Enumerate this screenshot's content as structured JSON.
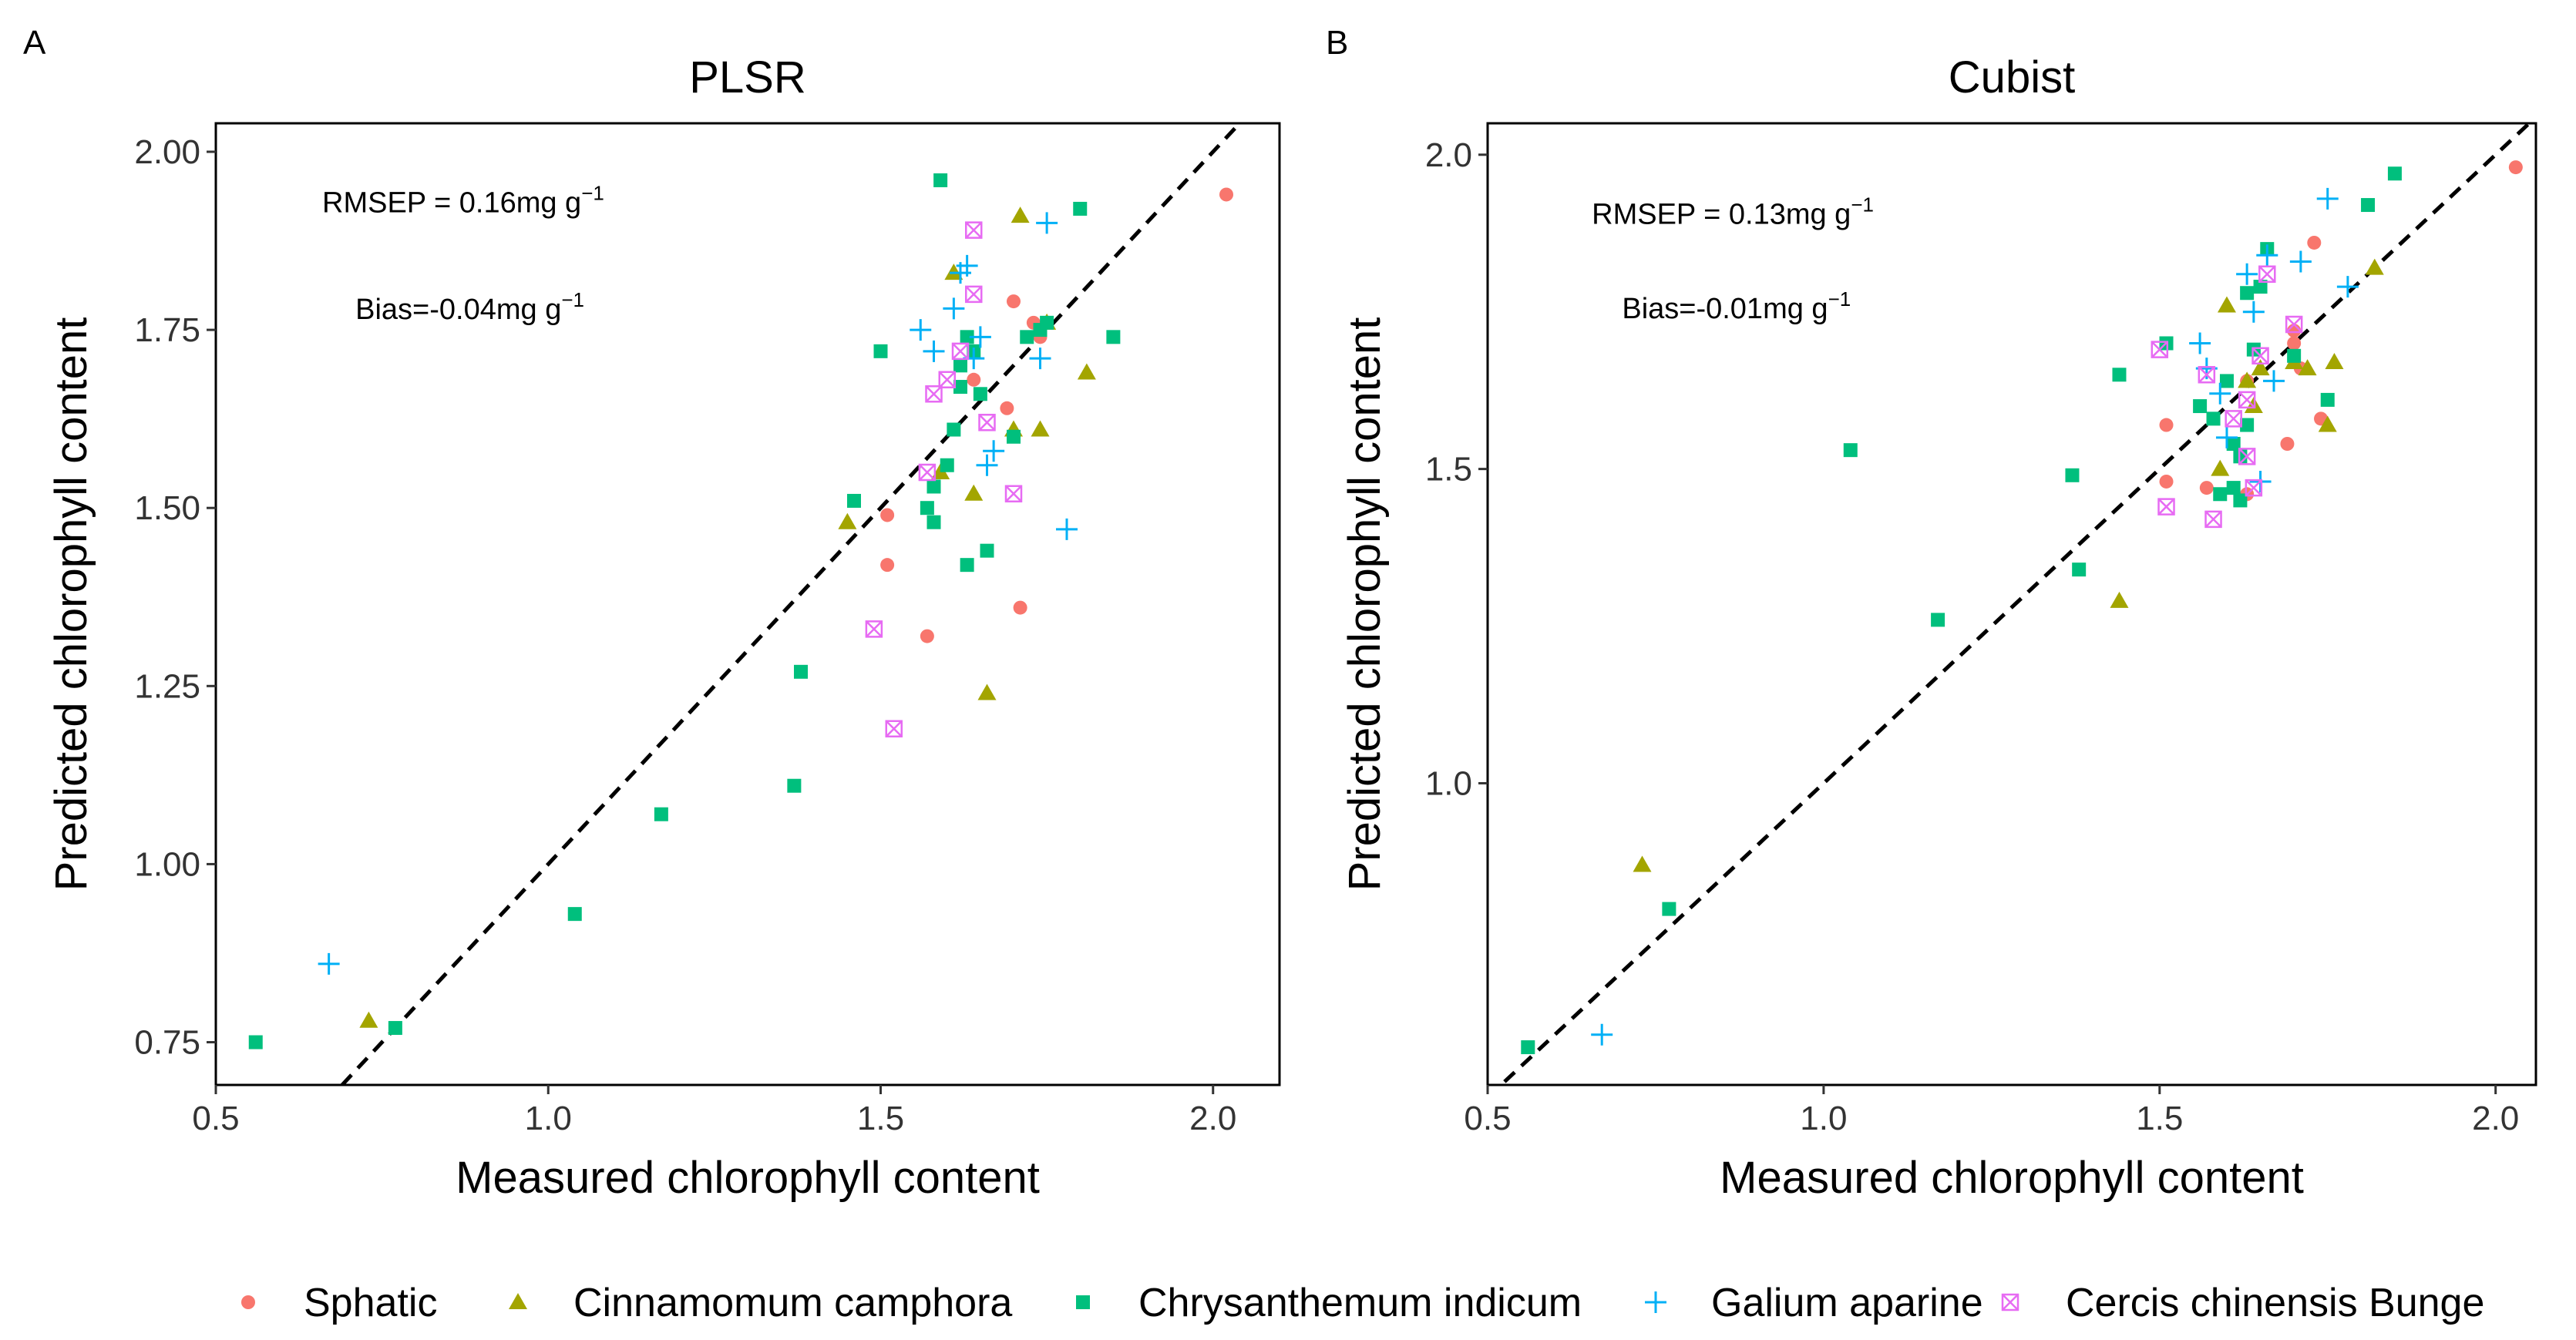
{
  "colors": {
    "Sphatic": "#F8766D",
    "Cinnamomum camphora": "#A3A500",
    "Chrysanthemum indicum": "#00BF7D",
    "Galium aparine": "#00B0F6",
    "Cercis chinensis Bunge": "#E76BF3"
  },
  "chart_data": [
    {
      "panel_label": "A",
      "title": "PLSR",
      "type": "scatter",
      "xlabel": "Measured chlorophyll content",
      "ylabel": "Predicted chlorophyll content",
      "xlim": [
        0.5,
        2.1
      ],
      "ylim": [
        0.69,
        2.04
      ],
      "xticks": [
        0.5,
        1.0,
        1.5,
        2.0
      ],
      "xtick_labels": [
        "0.5",
        "1.0",
        "1.5",
        "2.0"
      ],
      "yticks": [
        0.75,
        1.0,
        1.25,
        1.5,
        1.75,
        2.0
      ],
      "ytick_labels": [
        "0.75",
        "1.00",
        "1.25",
        "1.50",
        "1.75",
        "2.00"
      ],
      "annotations": [
        {
          "text": "RMSEP = 0.16mg g",
          "sup": "−1",
          "x": 0.66,
          "y": 1.915
        },
        {
          "text": "Bias=-0.04mg g",
          "sup": "−1",
          "x": 0.71,
          "y": 1.765
        }
      ],
      "reference_line": {
        "from": [
          0.5,
          0.5
        ],
        "to": [
          2.1,
          2.1
        ]
      },
      "series": [
        {
          "name": "Sphatic",
          "shape": "circle",
          "x": [
            2.02,
            1.51,
            1.51,
            1.57,
            1.64,
            1.69,
            1.7,
            1.71,
            1.73,
            1.74
          ],
          "y": [
            1.94,
            1.49,
            1.42,
            1.32,
            1.68,
            1.64,
            1.79,
            1.36,
            1.76,
            1.74
          ]
        },
        {
          "name": "Cinnamomum camphora",
          "shape": "triangle",
          "x": [
            0.73,
            1.45,
            1.59,
            1.61,
            1.64,
            1.66,
            1.7,
            1.71,
            1.74,
            1.75,
            1.81
          ],
          "y": [
            0.78,
            1.48,
            1.55,
            1.83,
            1.52,
            1.24,
            1.61,
            1.91,
            1.61,
            1.76,
            1.69
          ]
        },
        {
          "name": "Chrysanthemum indicum",
          "shape": "square",
          "x": [
            0.56,
            0.77,
            1.04,
            1.17,
            1.37,
            1.38,
            1.46,
            1.5,
            1.57,
            1.58,
            1.59,
            1.6,
            1.61,
            1.62,
            1.63,
            1.64,
            1.65,
            1.66,
            1.7,
            1.72,
            1.74,
            1.75,
            1.8,
            1.85,
            1.63,
            1.62,
            1.58
          ],
          "y": [
            0.75,
            0.77,
            0.93,
            1.07,
            1.11,
            1.27,
            1.51,
            1.72,
            1.5,
            1.48,
            1.96,
            1.56,
            1.61,
            1.7,
            1.42,
            1.72,
            1.66,
            1.44,
            1.6,
            1.74,
            1.75,
            1.76,
            1.92,
            1.74,
            1.74,
            1.67,
            1.53
          ]
        },
        {
          "name": "Galium aparine",
          "shape": "plus",
          "x": [
            0.67,
            1.56,
            1.58,
            1.61,
            1.62,
            1.63,
            1.64,
            1.66,
            1.67,
            1.74,
            1.75,
            1.78,
            1.65
          ],
          "y": [
            0.86,
            1.75,
            1.72,
            1.78,
            1.83,
            1.84,
            1.71,
            1.56,
            1.58,
            1.71,
            1.9,
            1.47,
            1.74
          ]
        },
        {
          "name": "Cercis chinensis Bunge",
          "shape": "boxx",
          "x": [
            1.49,
            1.52,
            1.57,
            1.58,
            1.6,
            1.62,
            1.64,
            1.64,
            1.66,
            1.7
          ],
          "y": [
            1.33,
            1.19,
            1.55,
            1.66,
            1.68,
            1.72,
            1.8,
            1.89,
            1.62,
            1.52
          ]
        }
      ]
    },
    {
      "panel_label": "B",
      "title": "Cubist",
      "type": "scatter",
      "xlabel": "Measured chlorophyll content",
      "ylabel": "Predicted chlorophyll content",
      "xlim": [
        0.5,
        2.06
      ],
      "ylim": [
        0.52,
        2.05
      ],
      "xticks": [
        0.5,
        1.0,
        1.5,
        2.0
      ],
      "xtick_labels": [
        "0.5",
        "1.0",
        "1.5",
        "2.0"
      ],
      "yticks": [
        1.0,
        1.5,
        2.0
      ],
      "ytick_labels": [
        "1.0",
        "1.5",
        "2.0"
      ],
      "annotations": [
        {
          "text": "RMSEP = 0.13mg g",
          "sup": "−1",
          "x": 0.655,
          "y": 1.89
        },
        {
          "text": "Bias=-0.01mg g",
          "sup": "−1",
          "x": 0.7,
          "y": 1.74
        }
      ],
      "reference_line": {
        "from": [
          0.5,
          0.5
        ],
        "to": [
          2.06,
          2.06
        ]
      },
      "series": [
        {
          "name": "Sphatic",
          "shape": "circle",
          "x": [
            2.03,
            1.51,
            1.51,
            1.57,
            1.63,
            1.63,
            1.7,
            1.71,
            1.73,
            1.74,
            1.7,
            1.69
          ],
          "y": [
            1.98,
            1.57,
            1.48,
            1.47,
            1.64,
            1.46,
            1.72,
            1.66,
            1.86,
            1.58,
            1.7,
            1.54
          ]
        },
        {
          "name": "Cinnamomum camphora",
          "shape": "triangle",
          "x": [
            0.73,
            1.44,
            1.6,
            1.59,
            1.64,
            1.65,
            1.7,
            1.72,
            1.75,
            1.76,
            1.82,
            1.63
          ],
          "y": [
            0.87,
            1.29,
            1.76,
            1.5,
            1.6,
            1.66,
            1.67,
            1.66,
            1.57,
            1.67,
            1.82,
            1.64
          ]
        },
        {
          "name": "Chrysanthemum indicum",
          "shape": "square",
          "x": [
            0.56,
            0.77,
            1.04,
            1.17,
            1.37,
            1.38,
            1.44,
            1.51,
            1.56,
            1.58,
            1.6,
            1.61,
            1.62,
            1.63,
            1.64,
            1.65,
            1.66,
            1.62,
            1.61,
            1.7,
            1.75,
            1.81,
            1.85,
            1.63,
            1.59
          ],
          "y": [
            0.58,
            0.8,
            1.53,
            1.26,
            1.49,
            1.34,
            1.65,
            1.7,
            1.6,
            1.58,
            1.64,
            1.54,
            1.45,
            1.78,
            1.69,
            1.79,
            1.85,
            1.52,
            1.47,
            1.68,
            1.61,
            1.92,
            1.97,
            1.57,
            1.46
          ]
        },
        {
          "name": "Galium aparine",
          "shape": "plus",
          "x": [
            0.67,
            1.56,
            1.57,
            1.59,
            1.63,
            1.64,
            1.65,
            1.67,
            1.71,
            1.75,
            1.78,
            1.6,
            1.66
          ],
          "y": [
            0.6,
            1.7,
            1.66,
            1.62,
            1.81,
            1.75,
            1.48,
            1.64,
            1.83,
            1.93,
            1.79,
            1.55,
            1.84
          ]
        },
        {
          "name": "Cercis chinensis Bunge",
          "shape": "boxx",
          "x": [
            1.51,
            1.58,
            1.57,
            1.61,
            1.63,
            1.64,
            1.65,
            1.66,
            1.7,
            1.5,
            1.63
          ],
          "y": [
            1.44,
            1.42,
            1.65,
            1.58,
            1.52,
            1.47,
            1.68,
            1.81,
            1.73,
            1.69,
            1.61
          ]
        }
      ]
    }
  ],
  "legend": {
    "items": [
      "Sphatic",
      "Cinnamomum camphora",
      "Chrysanthemum indicum",
      "Galium aparine",
      "Cercis chinensis Bunge"
    ]
  }
}
